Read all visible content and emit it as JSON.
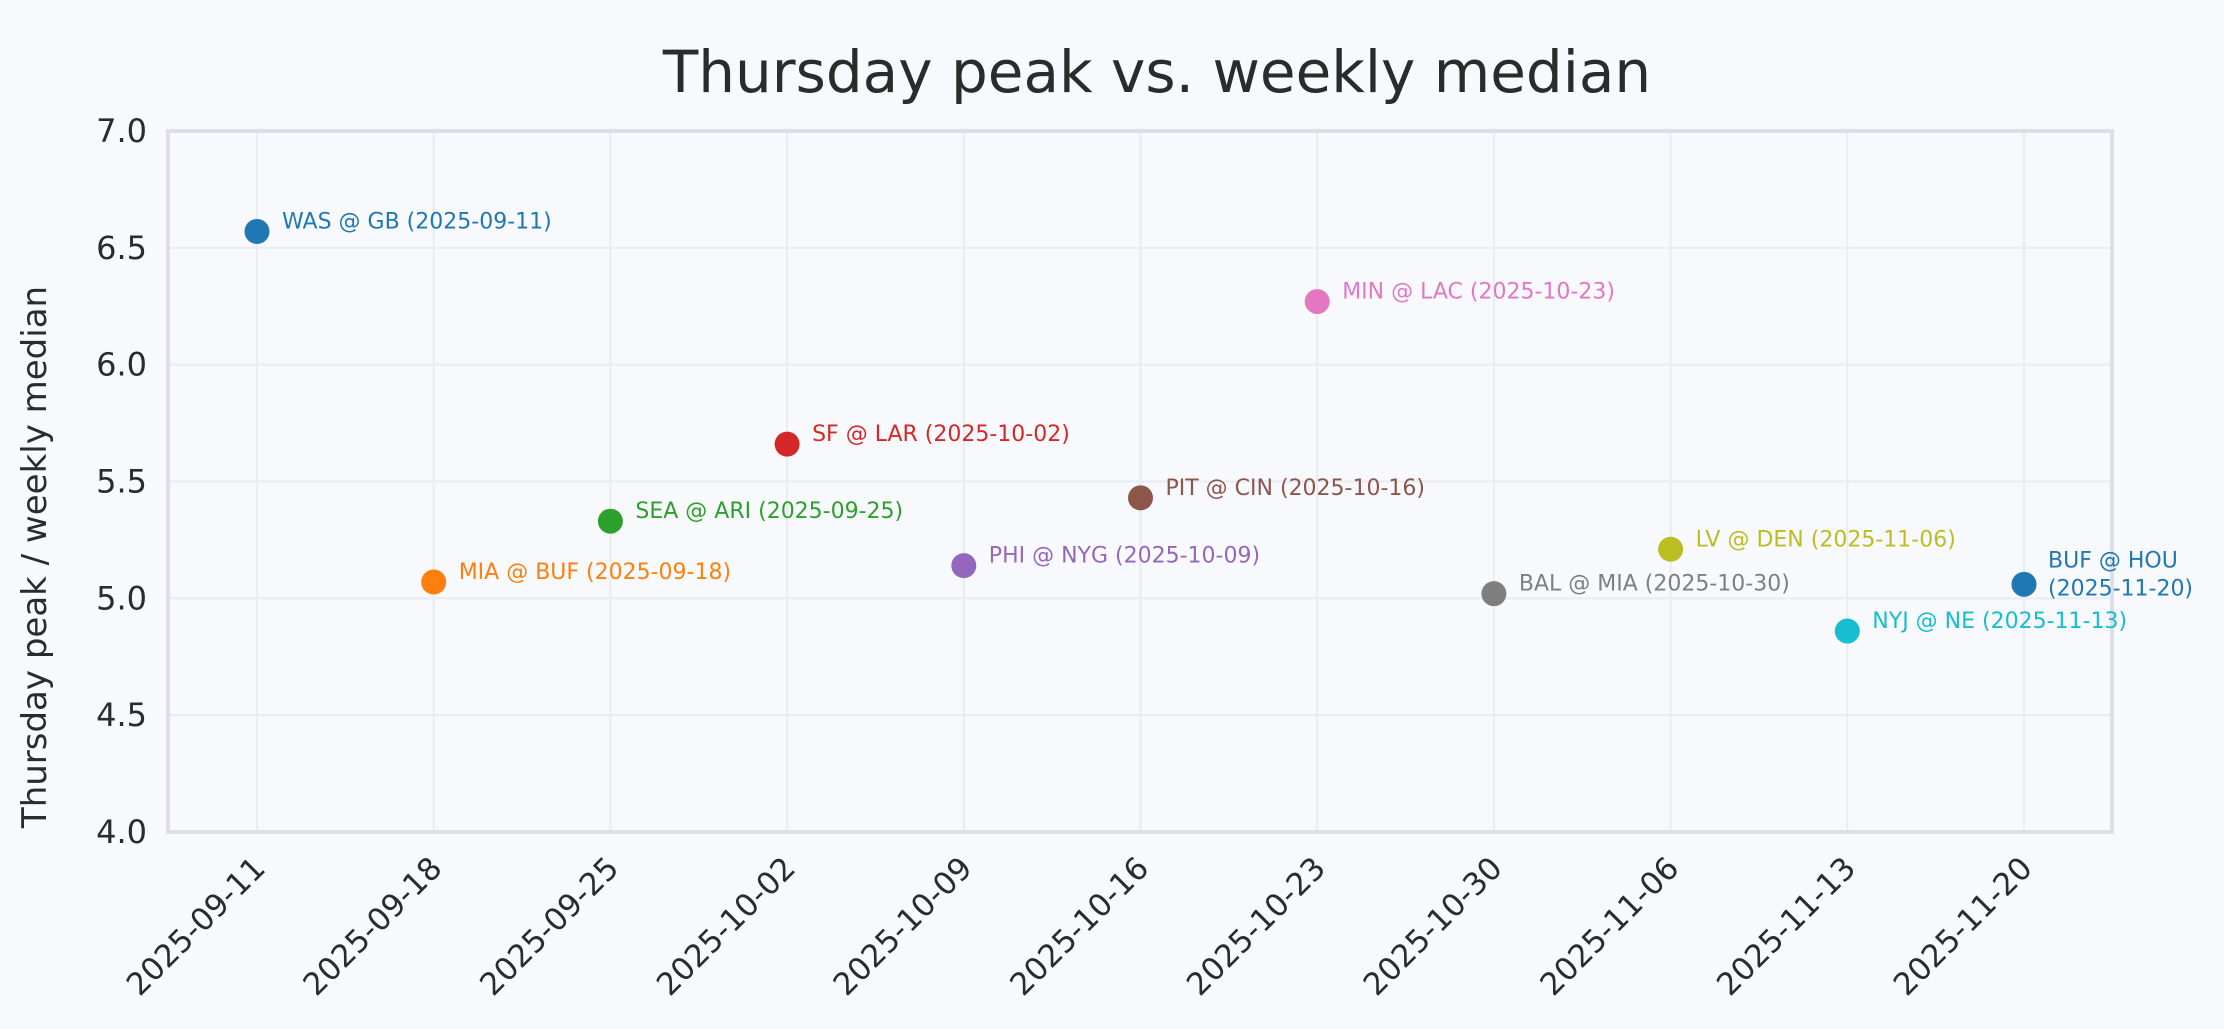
{
  "chart_data": {
    "type": "scatter",
    "title": "Thursday peak vs. weekly median",
    "xlabel": "",
    "ylabel": "Thursday peak / weekly median",
    "ylim": [
      4.0,
      7.0
    ],
    "yticks": [
      "4.0",
      "4.5",
      "5.0",
      "5.5",
      "6.0",
      "6.5",
      "7.0"
    ],
    "xticks": [
      "2025-09-11",
      "2025-09-18",
      "2025-09-25",
      "2025-10-02",
      "2025-10-09",
      "2025-10-16",
      "2025-10-23",
      "2025-10-30",
      "2025-11-06",
      "2025-11-13",
      "2025-11-20"
    ],
    "grid": true,
    "points": [
      {
        "x": "2025-09-11",
        "y": 6.57,
        "label": "WAS @ GB (2025-09-11)",
        "color": "#1f77b4"
      },
      {
        "x": "2025-09-18",
        "y": 5.07,
        "label": "MIA @ BUF (2025-09-18)",
        "color": "#ff7f0e"
      },
      {
        "x": "2025-09-25",
        "y": 5.33,
        "label": "SEA @ ARI (2025-09-25)",
        "color": "#2ca02c"
      },
      {
        "x": "2025-10-02",
        "y": 5.66,
        "label": "SF @ LAR (2025-10-02)",
        "color": "#d62728"
      },
      {
        "x": "2025-10-09",
        "y": 5.14,
        "label": "PHI @ NYG (2025-10-09)",
        "color": "#9467bd"
      },
      {
        "x": "2025-10-16",
        "y": 5.43,
        "label": "PIT @ CIN (2025-10-16)",
        "color": "#8c564b"
      },
      {
        "x": "2025-10-23",
        "y": 6.27,
        "label": "MIN @ LAC (2025-10-23)",
        "color": "#e377c2"
      },
      {
        "x": "2025-10-30",
        "y": 5.02,
        "label": "BAL @ MIA (2025-10-30)",
        "color": "#7f7f7f"
      },
      {
        "x": "2025-11-06",
        "y": 5.21,
        "label": "LV @ DEN (2025-11-06)",
        "color": "#bcbd22"
      },
      {
        "x": "2025-11-13",
        "y": 4.86,
        "label": "NYJ @ NE (2025-11-13)",
        "color": "#17becf"
      },
      {
        "x": "2025-11-20",
        "y": 5.06,
        "label": "BUF @ HOU\n(2025-11-20)",
        "color": "#1f77b4"
      }
    ]
  }
}
